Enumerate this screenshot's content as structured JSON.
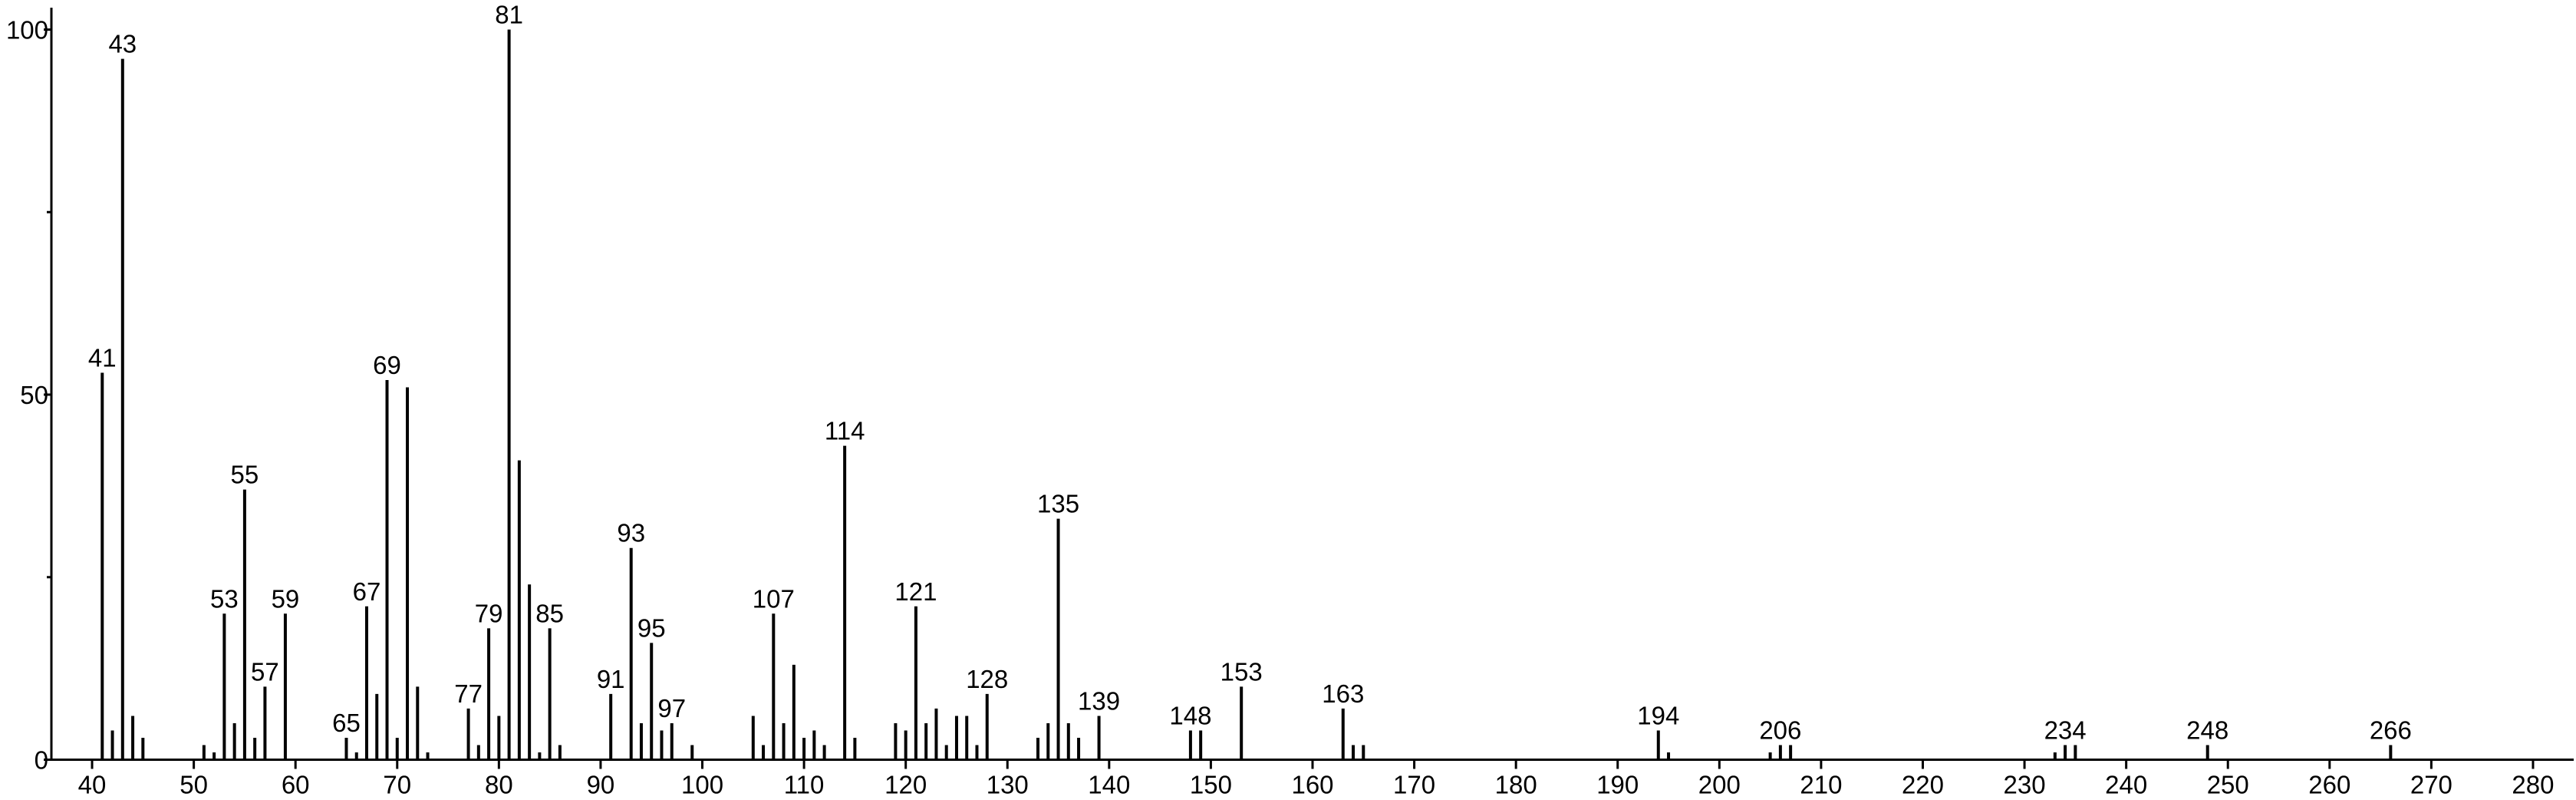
{
  "chart_data": {
    "type": "stem",
    "x": [
      41,
      42,
      43,
      44,
      45,
      51,
      52,
      53,
      54,
      55,
      56,
      57,
      59,
      65,
      66,
      67,
      68,
      69,
      70,
      71,
      72,
      73,
      77,
      78,
      79,
      80,
      81,
      82,
      83,
      84,
      85,
      86,
      91,
      93,
      94,
      95,
      96,
      97,
      99,
      105,
      106,
      107,
      108,
      109,
      110,
      111,
      112,
      114,
      115,
      119,
      120,
      121,
      122,
      123,
      124,
      125,
      126,
      127,
      128,
      133,
      134,
      135,
      136,
      137,
      139,
      148,
      149,
      153,
      163,
      164,
      165,
      194,
      195,
      205,
      206,
      207,
      233,
      234,
      235,
      248,
      266
    ],
    "values": [
      53,
      4,
      96,
      6,
      3,
      2,
      1,
      20,
      5,
      37,
      3,
      10,
      20,
      3,
      1,
      21,
      9,
      52,
      3,
      51,
      10,
      1,
      7,
      2,
      18,
      6,
      100,
      41,
      24,
      1,
      18,
      2,
      9,
      29,
      5,
      16,
      4,
      5,
      2,
      6,
      2,
      20,
      5,
      13,
      3,
      4,
      2,
      43,
      3,
      5,
      4,
      21,
      5,
      7,
      2,
      6,
      6,
      2,
      9,
      3,
      5,
      33,
      5,
      3,
      6,
      4,
      4,
      10,
      7,
      2,
      2,
      4,
      1,
      1,
      2,
      2,
      1,
      2,
      2,
      2,
      2
    ],
    "labels": [
      "41",
      null,
      "43",
      null,
      null,
      null,
      null,
      "53",
      null,
      "55",
      null,
      "57",
      "59",
      "65",
      null,
      "67",
      null,
      "69",
      null,
      null,
      null,
      null,
      "77",
      null,
      "79",
      null,
      "81",
      null,
      null,
      null,
      "85",
      null,
      "91",
      "93",
      null,
      "95",
      null,
      "97",
      null,
      null,
      null,
      "107",
      null,
      null,
      null,
      null,
      null,
      "114",
      null,
      null,
      null,
      "121",
      null,
      null,
      null,
      null,
      null,
      null,
      "128",
      null,
      null,
      "135",
      null,
      null,
      "139",
      "148",
      null,
      "153",
      "163",
      null,
      null,
      "194",
      null,
      null,
      "206",
      null,
      null,
      "234",
      null,
      "248",
      "266"
    ],
    "color": "#000000",
    "xlim": [
      36,
      284
    ],
    "ylim": [
      0,
      103
    ],
    "xticks": [
      40,
      50,
      60,
      70,
      80,
      90,
      100,
      110,
      120,
      130,
      140,
      150,
      160,
      170,
      180,
      190,
      200,
      210,
      220,
      230,
      240,
      250,
      260,
      270,
      280
    ],
    "yticks": [
      0,
      50,
      100
    ],
    "yminor": [
      25,
      75
    ]
  }
}
